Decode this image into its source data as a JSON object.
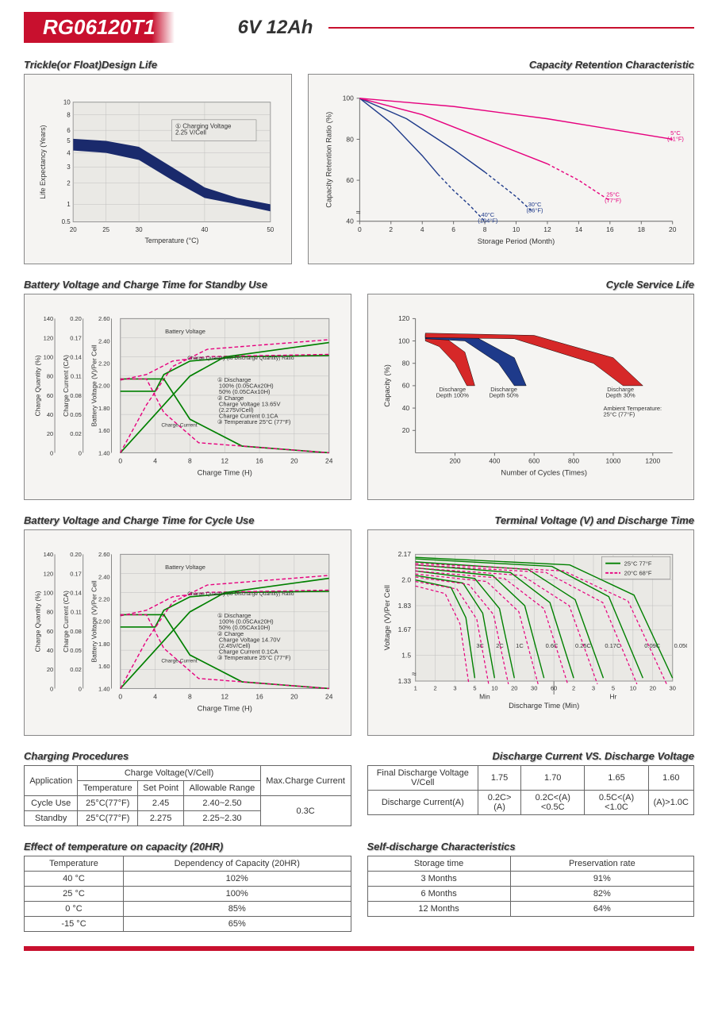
{
  "header": {
    "model": "RG06120T1",
    "spec": "6V  12Ah"
  },
  "colors": {
    "accent": "#c8102e",
    "navy": "#1a2a6c",
    "green": "#008000",
    "magenta": "#e6007e",
    "blue": "#1e3a8a",
    "red": "#d62828",
    "panel_bg": "#f5f4f2",
    "grid": "#bbbbbb",
    "axis": "#666666"
  },
  "charts": {
    "trickle": {
      "title": "Trickle(or Float)Design Life",
      "xlabel": "Temperature (°C)",
      "ylabel": "Life Expectancy (Years)",
      "xticks": [
        20,
        25,
        30,
        40,
        50
      ],
      "yticks": [
        0.5,
        1,
        2,
        3,
        4,
        5,
        6,
        8,
        10
      ],
      "annotation": "① Charging Voltage\n2.25 V/Cell",
      "band_upper": [
        [
          20,
          5.2
        ],
        [
          25,
          5.0
        ],
        [
          30,
          4.5
        ],
        [
          35,
          3.0
        ],
        [
          40,
          1.8
        ],
        [
          45,
          1.3
        ],
        [
          50,
          1.0
        ]
      ],
      "band_lower": [
        [
          20,
          4.2
        ],
        [
          25,
          4.0
        ],
        [
          30,
          3.5
        ],
        [
          35,
          2.2
        ],
        [
          40,
          1.3
        ],
        [
          45,
          1.0
        ],
        [
          50,
          0.8
        ]
      ],
      "band_color": "#1a2a6c"
    },
    "retention": {
      "title": "Capacity Retention Characteristic",
      "xlabel": "Storage Period (Month)",
      "ylabel": "Capacity Retention Ratio (%)",
      "xticks": [
        0,
        2,
        4,
        6,
        8,
        10,
        12,
        14,
        16,
        18,
        20
      ],
      "yticks": [
        40,
        60,
        80,
        100
      ],
      "series": [
        {
          "label": "40°C\n(104°F)",
          "color": "#1e3a8a",
          "points": [
            [
              0,
              100
            ],
            [
              2,
              88
            ],
            [
              4,
              72
            ],
            [
              5,
              63
            ],
            [
              6,
              55
            ],
            [
              7,
              48
            ],
            [
              8,
              40
            ]
          ],
          "dash_from": 5
        },
        {
          "label": "30°C\n(86°F)",
          "color": "#1e3a8a",
          "points": [
            [
              0,
              100
            ],
            [
              3,
              90
            ],
            [
              6,
              75
            ],
            [
              8,
              64
            ],
            [
              10,
              52
            ],
            [
              11,
              45
            ]
          ],
          "dash_from": 8
        },
        {
          "label": "25°C\n(77°F)",
          "color": "#e6007e",
          "points": [
            [
              0,
              100
            ],
            [
              4,
              92
            ],
            [
              8,
              80
            ],
            [
              12,
              68
            ],
            [
              14,
              60
            ],
            [
              16,
              50
            ]
          ],
          "dash_from": 12
        },
        {
          "label": "5°C\n(41°F)",
          "color": "#e6007e",
          "points": [
            [
              0,
              100
            ],
            [
              6,
              96
            ],
            [
              12,
              90
            ],
            [
              16,
              85
            ],
            [
              20,
              80
            ]
          ],
          "dash_from": 20
        }
      ]
    },
    "standby": {
      "title": "Battery Voltage and Charge Time for Standby Use",
      "xlabel": "Charge Time (H)",
      "y1": "Charge Quantity (%)",
      "y2": "Charge Current (CA)",
      "y3": "Battery Voltage (V)/Per Cell",
      "xticks": [
        0,
        4,
        8,
        12,
        16,
        20,
        24
      ],
      "y1ticks": [
        0,
        20,
        40,
        60,
        80,
        100,
        120,
        140
      ],
      "y2ticks": [
        "0",
        "0.02",
        "0.05",
        "0.08",
        "0.11",
        "0.14",
        "0.17",
        "0.20"
      ],
      "y3ticks": [
        "1.40",
        "1.60",
        "1.80",
        "2.00",
        "2.20",
        "2.40",
        "2.60"
      ],
      "note": "① Discharge\n  100% (0.05CAx20H)\n  50% (0.05CAx10H)\n② Charge\n  Charge Voltage 13.65V\n  (2.275V/Cell)\n  Charge Current 0.1CA\n③ Temperature 25°C (77°F)",
      "labels": {
        "bv": "Battery Voltage",
        "cq": "Charge Quantity (to Discharge Quantity) Ratio",
        "cc": "Charge Current"
      }
    },
    "cycle_life": {
      "title": "Cycle Service Life",
      "xlabel": "Number of Cycles (Times)",
      "ylabel": "Capacity (%)",
      "xticks": [
        200,
        400,
        600,
        800,
        1000,
        1200
      ],
      "yticks": [
        20,
        40,
        60,
        80,
        100,
        120
      ],
      "note": "Ambient Temperature:\n25°C (77°F)",
      "bands": [
        {
          "label": "Discharge\nDepth 100%",
          "color": "#d62828",
          "upper": [
            [
              50,
              105
            ],
            [
              150,
              103
            ],
            [
              250,
              90
            ],
            [
              300,
              60
            ]
          ],
          "lower": [
            [
              50,
              100
            ],
            [
              120,
              95
            ],
            [
              200,
              80
            ],
            [
              260,
              60
            ]
          ]
        },
        {
          "label": "Discharge\nDepth 50%",
          "color": "#1e3a8a",
          "upper": [
            [
              50,
              106
            ],
            [
              300,
              104
            ],
            [
              500,
              85
            ],
            [
              560,
              60
            ]
          ],
          "lower": [
            [
              50,
              102
            ],
            [
              250,
              100
            ],
            [
              420,
              80
            ],
            [
              500,
              60
            ]
          ]
        },
        {
          "label": "Discharge\nDepth 30%",
          "color": "#d62828",
          "upper": [
            [
              50,
              107
            ],
            [
              600,
              105
            ],
            [
              1000,
              85
            ],
            [
              1150,
              60
            ]
          ],
          "lower": [
            [
              50,
              103
            ],
            [
              500,
              102
            ],
            [
              900,
              80
            ],
            [
              1050,
              60
            ]
          ]
        }
      ]
    },
    "cycle_charge": {
      "title": "Battery Voltage and Charge Time for Cycle Use",
      "note": "① Discharge\n  100% (0.05CAx20H)\n  50% (0.05CAx10H)\n② Charge\n  Charge Voltage 14.70V\n  (2.45V/Cell)\n  Charge Current 0.1CA\n③ Temperature 25°C (77°F)"
    },
    "terminal": {
      "title": "Terminal Voltage (V) and Discharge Time",
      "xlabel": "Discharge Time (Min)",
      "ylabel": "Voltage (V)/Per Cell",
      "yticks": [
        "1.33",
        "1.5",
        "1.67",
        "1.83",
        "2.0",
        "2.17"
      ],
      "legend": [
        {
          "label": "25°C 77°F",
          "color": "#008000",
          "dash": false
        },
        {
          "label": "20°C 68°F",
          "color": "#e6007e",
          "dash": true
        }
      ],
      "curve_labels": [
        "3C",
        "2C",
        "1C",
        "0.6C",
        "0.25C",
        "0.17C",
        "0.09C",
        "0.05C"
      ],
      "x_sections": {
        "min_label": "Min",
        "hr_label": "Hr",
        "ticks": [
          "1",
          "2",
          "3",
          "5",
          "10",
          "20",
          "30",
          "60",
          "2",
          "3",
          "5",
          "10",
          "20",
          "30"
        ]
      }
    }
  },
  "tables": {
    "charging": {
      "title": "Charging Procedures",
      "headers": {
        "app": "Application",
        "cv": "Charge Voltage(V/Cell)",
        "temp": "Temperature",
        "sp": "Set Point",
        "ar": "Allowable Range",
        "max": "Max.Charge Current"
      },
      "rows": [
        {
          "app": "Cycle Use",
          "temp": "25°C(77°F)",
          "sp": "2.45",
          "ar": "2.40~2.50"
        },
        {
          "app": "Standby",
          "temp": "25°C(77°F)",
          "sp": "2.275",
          "ar": "2.25~2.30"
        }
      ],
      "max_current": "0.3C"
    },
    "discharge_iv": {
      "title": "Discharge Current VS. Discharge Voltage",
      "r1_label": "Final Discharge Voltage V/Cell",
      "r1": [
        "1.75",
        "1.70",
        "1.65",
        "1.60"
      ],
      "r2_label": "Discharge Current(A)",
      "r2": [
        "0.2C>(A)",
        "0.2C<(A)<0.5C",
        "0.5C<(A)<1.0C",
        "(A)>1.0C"
      ]
    },
    "temp_capacity": {
      "title": "Effect of temperature on capacity (20HR)",
      "h1": "Temperature",
      "h2": "Dependency of Capacity (20HR)",
      "rows": [
        [
          "40 °C",
          "102%"
        ],
        [
          "25 °C",
          "100%"
        ],
        [
          "0 °C",
          "85%"
        ],
        [
          "-15 °C",
          "65%"
        ]
      ]
    },
    "self_discharge": {
      "title": "Self-discharge Characteristics",
      "h1": "Storage time",
      "h2": "Preservation rate",
      "rows": [
        [
          "3 Months",
          "91%"
        ],
        [
          "6 Months",
          "82%"
        ],
        [
          "12 Months",
          "64%"
        ]
      ]
    }
  }
}
